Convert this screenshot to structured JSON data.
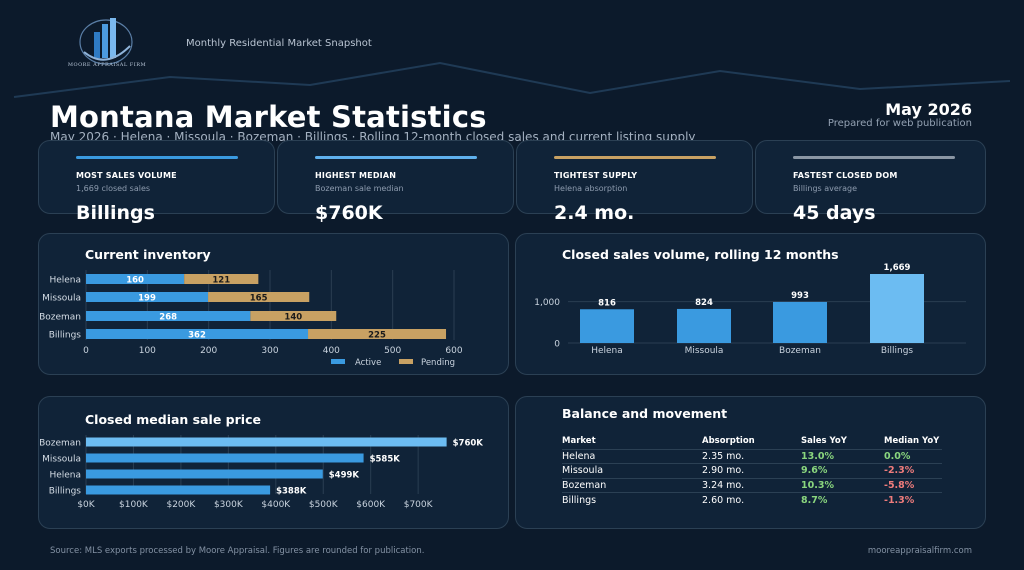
{
  "header": {
    "logo_text": "MOORE APPRAISAL FIRM",
    "snapshot_label": "Monthly Residential Market Snapshot",
    "title": "Montana Market Statistics",
    "subtitle": "May 2026 · Helena · Missoula · Bozeman · Billings · Rolling 12-month closed sales and current listing supply",
    "period": "May 2026",
    "prepared": "Prepared for web publication"
  },
  "colors": {
    "background": "#0c1a2b",
    "panel": "#102338",
    "blue": "#3a9ae0",
    "light_blue": "#6cbcf2",
    "tan": "#c8a163",
    "gray": "#8a96a4",
    "positive": "#8ad67e",
    "negative": "#ef7c7c"
  },
  "kpis": [
    {
      "label": "MOST SALES VOLUME",
      "sub": "1,669 closed sales",
      "value": "Billings",
      "color": "#3a9ae0"
    },
    {
      "label": "HIGHEST MEDIAN",
      "sub": "Bozeman sale median",
      "value": "$760K",
      "color": "#5fb1ee"
    },
    {
      "label": "TIGHTEST SUPPLY",
      "sub": "Helena absorption",
      "value": "2.4 mo.",
      "color": "#c8a163"
    },
    {
      "label": "FASTEST CLOSED DOM",
      "sub": "Billings average",
      "value": "45 days",
      "color": "#8a96a4"
    }
  ],
  "panels": {
    "inventory_title": "Current inventory",
    "volume_title": "Closed sales volume, rolling 12 months",
    "price_title": "Closed median sale price",
    "balance_title": "Balance and movement"
  },
  "chart_data": [
    {
      "type": "bar",
      "orientation": "horizontal",
      "stacked": true,
      "title": "Current inventory",
      "categories": [
        "Helena",
        "Missoula",
        "Bozeman",
        "Billings"
      ],
      "series": [
        {
          "name": "Active",
          "values": [
            160,
            199,
            268,
            362
          ]
        },
        {
          "name": "Pending",
          "values": [
            121,
            165,
            140,
            225
          ]
        }
      ],
      "xlim": [
        0,
        600
      ],
      "xticks": [
        "0",
        "100",
        "200",
        "300",
        "400",
        "500",
        "600"
      ],
      "grid": true,
      "legend": "bottom-right"
    },
    {
      "type": "bar",
      "title": "Closed sales volume, rolling 12 months",
      "categories": [
        "Helena",
        "Missoula",
        "Bozeman",
        "Billings"
      ],
      "values": [
        816,
        824,
        993,
        1669
      ],
      "value_labels": [
        "816",
        "824",
        "993",
        "1,669"
      ],
      "ylim": [
        0,
        1669
      ],
      "yticks": [
        "0",
        "1,000"
      ],
      "grid": true
    },
    {
      "type": "bar",
      "orientation": "horizontal",
      "title": "Closed median sale price",
      "categories": [
        "Bozeman",
        "Missoula",
        "Helena",
        "Billings"
      ],
      "values": [
        760,
        585,
        499,
        388
      ],
      "value_labels": [
        "$760K",
        "$585K",
        "$499K",
        "$388K"
      ],
      "xlim": [
        0,
        800
      ],
      "xticks": [
        "$0K",
        "$100K",
        "$200K",
        "$300K",
        "$400K",
        "$500K",
        "$600K",
        "$700K"
      ],
      "grid": true
    },
    {
      "type": "table",
      "title": "Balance and movement",
      "columns": [
        "Market",
        "Absorption",
        "Sales YoY",
        "Median YoY"
      ],
      "rows": [
        [
          "Helena",
          "2.35 mo.",
          "13.0%",
          "0.0%"
        ],
        [
          "Missoula",
          "2.90 mo.",
          "9.6%",
          "-2.3%"
        ],
        [
          "Bozeman",
          "3.24 mo.",
          "10.3%",
          "-5.8%"
        ],
        [
          "Billings",
          "2.60 mo.",
          "8.7%",
          "-1.3%"
        ]
      ]
    }
  ],
  "footer": {
    "source": "Source: MLS exports processed by Moore Appraisal. Figures are rounded for publication.",
    "site": "mooreappraisalfirm.com"
  }
}
